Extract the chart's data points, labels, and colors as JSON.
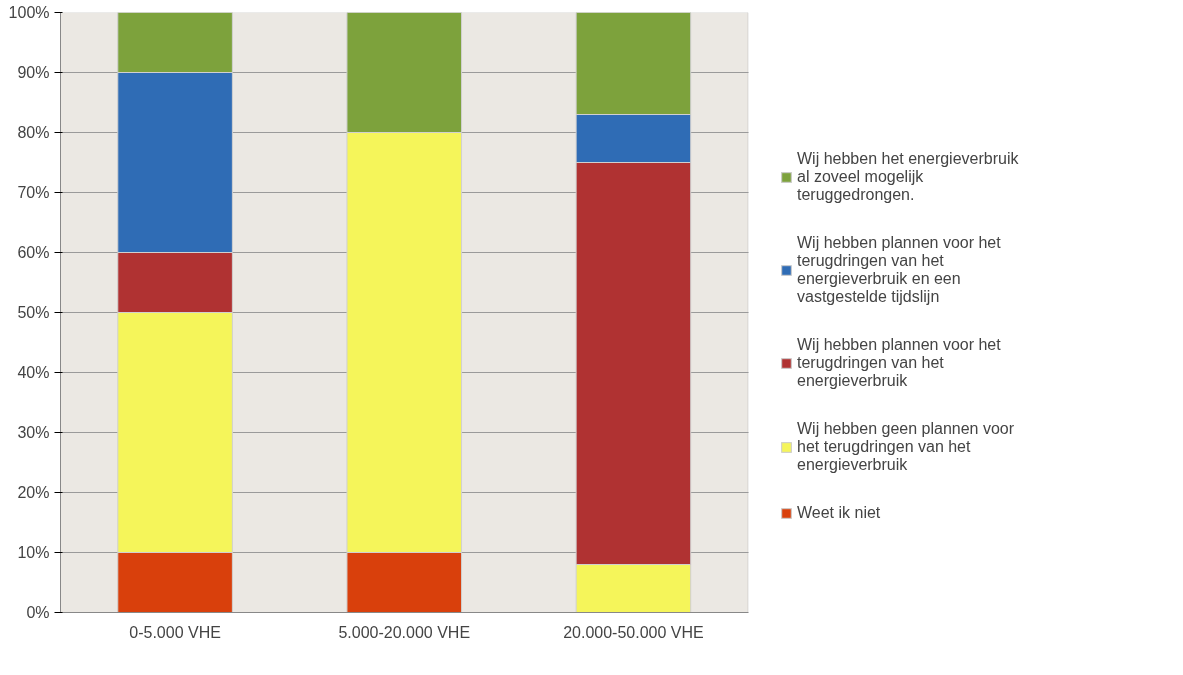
{
  "chart_data": {
    "type": "bar",
    "stacked": true,
    "categories": [
      "0-5.000 VHE",
      "5.000-20.000 VHE",
      "20.000-50.000 VHE"
    ],
    "series": [
      {
        "name": "Weet ik niet",
        "color": "#d9400c",
        "values": [
          10,
          10,
          0
        ]
      },
      {
        "name": "Wij hebben geen plannen voor het terugdringen van het energieverbruik",
        "color": "#f5f55a",
        "values": [
          40,
          70,
          8
        ]
      },
      {
        "name": "Wij hebben plannen voor het terugdringen van het energieverbruik",
        "color": "#b03232",
        "values": [
          10,
          0,
          67
        ]
      },
      {
        "name": "Wij hebben plannen voor het terugdringen van het energieverbruik en een vastgestelde tijdslijn",
        "color": "#2f6cb5",
        "values": [
          30,
          0,
          8
        ]
      },
      {
        "name": "Wij hebben het energieverbruik al zoveel mogelijk teruggedrongen.",
        "color": "#7da23c",
        "values": [
          10,
          20,
          17
        ]
      }
    ],
    "ylim": [
      0,
      100
    ],
    "yticks": [
      {
        "value": 0,
        "label": "0%"
      },
      {
        "value": 10,
        "label": "10%"
      },
      {
        "value": 20,
        "label": "20%"
      },
      {
        "value": 30,
        "label": "30%"
      },
      {
        "value": 40,
        "label": "40%"
      },
      {
        "value": 50,
        "label": "50%"
      },
      {
        "value": 60,
        "label": "60%"
      },
      {
        "value": 70,
        "label": "70%"
      },
      {
        "value": 80,
        "label": "80%"
      },
      {
        "value": 90,
        "label": "90%"
      },
      {
        "value": 100,
        "label": "100%"
      }
    ],
    "grid": "y",
    "legend": "right"
  }
}
